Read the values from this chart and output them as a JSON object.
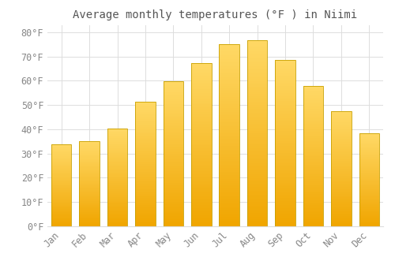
{
  "title": "Average monthly temperatures (°F ) in Niimi",
  "months": [
    "Jan",
    "Feb",
    "Mar",
    "Apr",
    "May",
    "Jun",
    "Jul",
    "Aug",
    "Sep",
    "Oct",
    "Nov",
    "Dec"
  ],
  "temperatures": [
    33.8,
    35.1,
    40.3,
    51.3,
    59.9,
    67.1,
    75.0,
    76.8,
    68.7,
    57.7,
    47.5,
    38.3
  ],
  "bar_color_top": "#FFD966",
  "bar_color_bottom": "#F0A500",
  "bar_edge_color": "#C8A000",
  "background_color": "#FFFFFF",
  "grid_color": "#DDDDDD",
  "ylim": [
    0,
    83
  ],
  "yticks": [
    0,
    10,
    20,
    30,
    40,
    50,
    60,
    70,
    80
  ],
  "title_fontsize": 10,
  "tick_fontsize": 8.5,
  "tick_color": "#888888",
  "title_color": "#555555"
}
